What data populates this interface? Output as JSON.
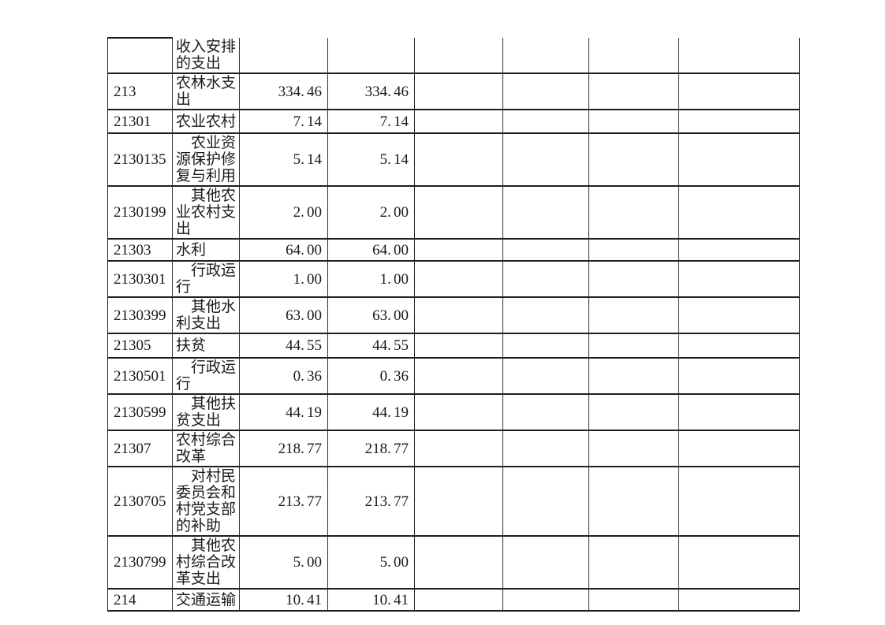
{
  "page": {
    "background_color": "#ffffff",
    "text_color": "#1a1a1a",
    "grid_line_color": "#1f1f1f"
  },
  "table": {
    "description": "budget-expenditure-table",
    "visible_column_count": 8,
    "empty_columns": 4,
    "rows": [
      {
        "code": "",
        "name": "收入安排的支出",
        "amount1": "",
        "amount2": "",
        "partial": true,
        "indent": false
      },
      {
        "code": "213",
        "name": "农林水支出",
        "amount1": "334.46",
        "amount2": "334.46",
        "partial": false,
        "indent": false
      },
      {
        "code": "21301",
        "name": "农业农村",
        "amount1": "7.14",
        "amount2": "7.14",
        "partial": false,
        "indent": false
      },
      {
        "code": "2130135",
        "name": "农业资源保护修复与利用",
        "amount1": "5.14",
        "amount2": "5.14",
        "partial": false,
        "indent": true
      },
      {
        "code": "2130199",
        "name": "其他农业农村支出",
        "amount1": "2.00",
        "amount2": "2.00",
        "partial": false,
        "indent": true
      },
      {
        "code": "21303",
        "name": "水利",
        "amount1": "64.00",
        "amount2": "64.00",
        "partial": false,
        "indent": false
      },
      {
        "code": "2130301",
        "name": "行政运行",
        "amount1": "1.00",
        "amount2": "1.00",
        "partial": false,
        "indent": true
      },
      {
        "code": "2130399",
        "name": "其他水利支出",
        "amount1": "63.00",
        "amount2": "63.00",
        "partial": false,
        "indent": true
      },
      {
        "code": "21305",
        "name": "扶贫",
        "amount1": "44.55",
        "amount2": "44.55",
        "partial": false,
        "indent": false
      },
      {
        "code": "2130501",
        "name": "行政运行",
        "amount1": "0.36",
        "amount2": "0.36",
        "partial": false,
        "indent": true
      },
      {
        "code": "2130599",
        "name": "其他扶贫支出",
        "amount1": "44.19",
        "amount2": "44.19",
        "partial": false,
        "indent": true
      },
      {
        "code": "21307",
        "name": "农村综合改革",
        "amount1": "218.77",
        "amount2": "218.77",
        "partial": false,
        "indent": false
      },
      {
        "code": "2130705",
        "name": "对村民委员会和村党支部的补助",
        "amount1": "213.77",
        "amount2": "213.77",
        "partial": false,
        "indent": true
      },
      {
        "code": "2130799",
        "name": "其他农村综合改革支出",
        "amount1": "5.00",
        "amount2": "5.00",
        "partial": false,
        "indent": true
      },
      {
        "code": "214",
        "name": "交通运输",
        "amount1": "10.41",
        "amount2": "10.41",
        "partial": false,
        "indent": false
      }
    ]
  }
}
